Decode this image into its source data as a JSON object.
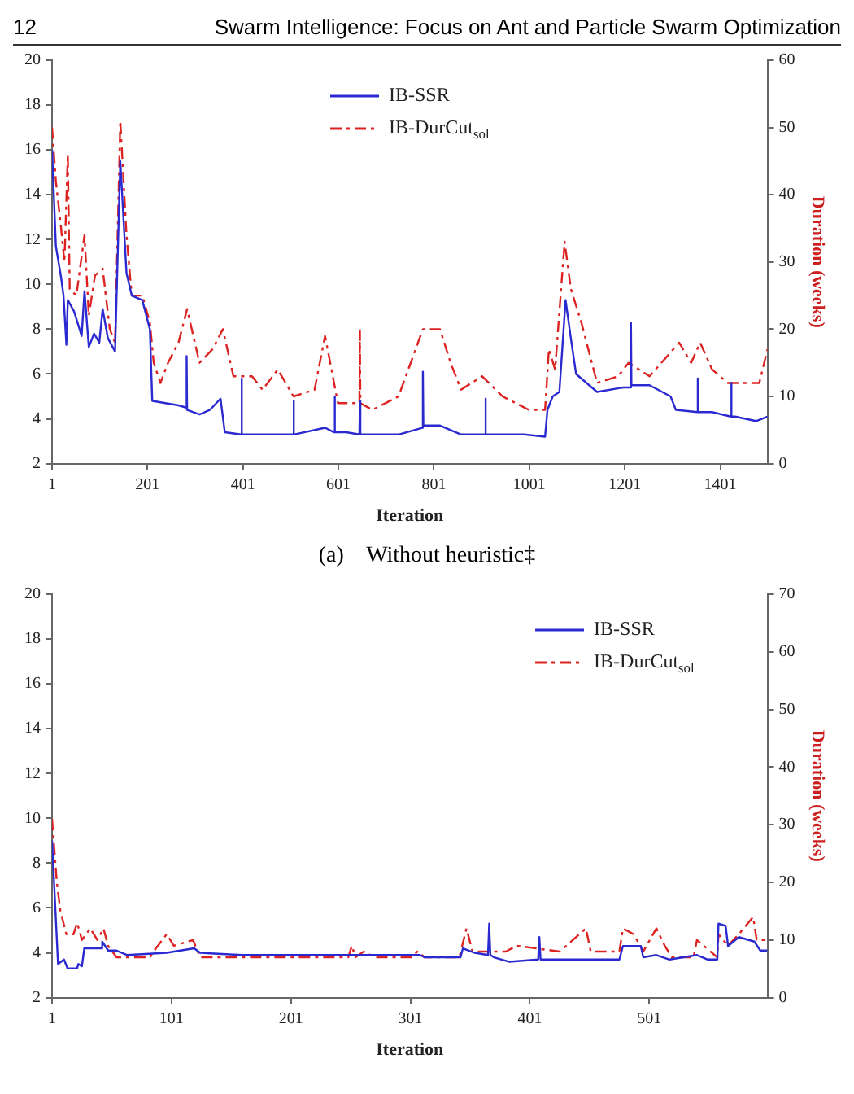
{
  "chart_data": [
    {
      "type": "line",
      "xlabel": "Iteration",
      "y2label": "Duration (weeks)",
      "annotations": [
        "12",
        "Swarm Intelligence: Focus on Ant and Particle Swarm Optimization",
        "(a)    Without heuristic‡"
      ],
      "xlim": [
        1,
        1500
      ],
      "xticks": [
        1,
        201,
        401,
        601,
        801,
        1001,
        1201,
        1401
      ],
      "ylim": [
        2,
        20
      ],
      "yticks": [
        2,
        4,
        6,
        8,
        10,
        12,
        14,
        16,
        18,
        20
      ],
      "y2lim": [
        0,
        60
      ],
      "y2ticks": [
        0,
        10,
        20,
        30,
        40,
        50,
        60
      ],
      "legend": "top",
      "series": [
        {
          "name": "IB-SSR",
          "color": "#2a2ad0",
          "line_style": "solid",
          "x": [
            1,
            9,
            20,
            25,
            31,
            34,
            47,
            63,
            69,
            78,
            89,
            100,
            107,
            118,
            133,
            144,
            157,
            168,
            190,
            206,
            211,
            266,
            282,
            283,
            284,
            310,
            332,
            354,
            363,
            397,
            398,
            399,
            453,
            506,
            507,
            508,
            573,
            592,
            593,
            594,
            617,
            645,
            646,
            647,
            727,
            777,
            778,
            779,
            814,
            858,
            908,
            909,
            910,
            990,
            1034,
            1039,
            1050,
            1064,
            1077,
            1088,
            1099,
            1143,
            1198,
            1213,
            1214,
            1215,
            1253,
            1297,
            1308,
            1353,
            1354,
            1355,
            1384,
            1423,
            1424,
            1425,
            1432,
            1476,
            1500
          ],
          "values": [
            16,
            11.7,
            10.3,
            9.5,
            7.3,
            9.3,
            8.8,
            7.7,
            9.7,
            7.2,
            7.8,
            7.4,
            8.9,
            7.6,
            7,
            15.5,
            10.5,
            9.5,
            9.3,
            8,
            4.8,
            4.6,
            4.5,
            6.8,
            4.4,
            4.2,
            4.4,
            4.9,
            3.4,
            3.3,
            5.8,
            3.3,
            3.3,
            3.3,
            4.8,
            3.3,
            3.6,
            3.4,
            5,
            3.4,
            3.4,
            3.3,
            4.8,
            3.3,
            3.3,
            3.6,
            6.1,
            3.7,
            3.7,
            3.3,
            3.3,
            4.9,
            3.3,
            3.3,
            3.2,
            4.4,
            5,
            5.2,
            9.3,
            7.6,
            6,
            5.2,
            5.4,
            5.4,
            8.3,
            5.5,
            5.5,
            5,
            4.4,
            4.3,
            5.8,
            4.3,
            4.3,
            4.1,
            5.6,
            4.1,
            4.1,
            3.9,
            4.1
          ]
        },
        {
          "name": "IB-DurCut$_{sol}$",
          "color": "#dd2222",
          "axis": "y2",
          "line_style": "dashed",
          "x": [
            1,
            9,
            20,
            27,
            34,
            38,
            52,
            69,
            78,
            91,
            107,
            122,
            133,
            144,
            157,
            168,
            190,
            206,
            214,
            228,
            244,
            266,
            284,
            310,
            337,
            359,
            381,
            420,
            442,
            474,
            507,
            551,
            573,
            600,
            645,
            646,
            647,
            672,
            727,
            778,
            814,
            836,
            858,
            902,
            945,
            1000,
            1034,
            1042,
            1055,
            1075,
            1088,
            1110,
            1143,
            1187,
            1209,
            1253,
            1315,
            1340,
            1359,
            1384,
            1417,
            1483,
            1500
          ],
          "values": [
            50,
            42,
            35,
            30,
            46,
            26,
            25,
            34,
            22,
            28,
            29,
            20,
            18,
            51,
            34,
            25,
            25,
            21,
            15,
            12,
            15,
            18,
            23,
            15,
            17,
            20,
            13,
            13,
            11,
            14,
            10,
            11,
            19,
            9,
            9,
            20,
            9,
            8,
            10,
            20,
            20,
            15,
            11,
            13,
            10,
            8,
            8,
            17,
            14,
            33,
            26,
            21,
            12,
            13,
            15,
            13,
            18,
            15,
            18,
            14,
            12,
            12,
            17
          ]
        }
      ]
    },
    {
      "type": "line",
      "xlabel": "Iteration",
      "y2label": "Duration (weeks)",
      "xlim": [
        1,
        600
      ],
      "xticks": [
        1,
        101,
        201,
        301,
        401,
        501
      ],
      "ylim": [
        2,
        20
      ],
      "yticks": [
        2,
        4,
        6,
        8,
        10,
        12,
        14,
        16,
        18,
        20
      ],
      "y2lim": [
        0,
        70
      ],
      "y2ticks": [
        0,
        10,
        20,
        30,
        40,
        50,
        60,
        70
      ],
      "legend": "top right",
      "series": [
        {
          "name": "IB-SSR",
          "color": "#2a2ad0",
          "line_style": "solid",
          "x": [
            1,
            6,
            11,
            14,
            22,
            23,
            26,
            28,
            42,
            43,
            48,
            55,
            64,
            97,
            120,
            125,
            160,
            309,
            313,
            343,
            345,
            355,
            366,
            367,
            368,
            371,
            384,
            408,
            409,
            410,
            476,
            479,
            494,
            496,
            507,
            518,
            541,
            550,
            558,
            559,
            565,
            567,
            576,
            589,
            594,
            600
          ],
          "values": [
            9,
            3.5,
            3.7,
            3.3,
            3.3,
            3.5,
            3.4,
            4.2,
            4.2,
            4.5,
            4.1,
            4.1,
            3.9,
            4,
            4.2,
            4,
            3.9,
            3.9,
            3.8,
            3.8,
            4.2,
            4,
            3.9,
            5.3,
            3.9,
            3.8,
            3.6,
            3.7,
            4.7,
            3.7,
            3.7,
            4.3,
            4.3,
            3.8,
            3.9,
            3.7,
            3.9,
            3.7,
            3.7,
            5.3,
            5.2,
            4.3,
            4.7,
            4.5,
            4.1,
            4.1
          ]
        },
        {
          "name": "IB-DurCut$_{sol}$",
          "color": "#dd2222",
          "axis": "y2",
          "line_style": "dashed",
          "x": [
            1,
            5,
            8,
            13,
            19,
            22,
            26,
            33,
            39,
            44,
            48,
            55,
            83,
            86,
            97,
            103,
            119,
            125,
            249,
            252,
            255,
            262,
            271,
            302,
            307,
            313,
            342,
            348,
            353,
            381,
            390,
            426,
            448,
            452,
            476,
            479,
            488,
            496,
            507,
            514,
            520,
            538,
            541,
            558,
            559,
            567,
            576,
            588,
            591,
            600
          ],
          "values": [
            31,
            20,
            15,
            11,
            11,
            13,
            10,
            12,
            10,
            12,
            9,
            7,
            7,
            8,
            11,
            9,
            10,
            7,
            7,
            9,
            7,
            8,
            7,
            7,
            8,
            7,
            7,
            12,
            8,
            8,
            9,
            8,
            12,
            8,
            8,
            12,
            11,
            8,
            12,
            9,
            7,
            7,
            10,
            7,
            11,
            9,
            11,
            14,
            10,
            10
          ]
        }
      ]
    }
  ]
}
